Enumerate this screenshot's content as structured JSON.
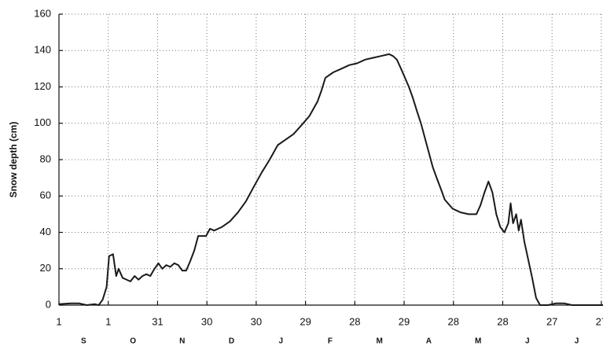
{
  "chart_data": {
    "type": "line",
    "ylabel": "Snow depth (cm)",
    "ylim": [
      0,
      160
    ],
    "yticks": [
      0,
      20,
      40,
      60,
      80,
      100,
      120,
      140,
      160
    ],
    "xlim": [
      0,
      331
    ],
    "xticks": [
      {
        "value": 0,
        "label": "1"
      },
      {
        "value": 30,
        "label": "1"
      },
      {
        "value": 60,
        "label": "31"
      },
      {
        "value": 90,
        "label": "30"
      },
      {
        "value": 120,
        "label": "30"
      },
      {
        "value": 150,
        "label": "29"
      },
      {
        "value": 180,
        "label": "28"
      },
      {
        "value": 210,
        "label": "29"
      },
      {
        "value": 240,
        "label": "28"
      },
      {
        "value": 270,
        "label": "28"
      },
      {
        "value": 300,
        "label": "27"
      },
      {
        "value": 330,
        "label": "27"
      }
    ],
    "month_labels": [
      "S",
      "O",
      "N",
      "D",
      "J",
      "F",
      "M",
      "A",
      "M",
      "J",
      "J"
    ],
    "grid": true,
    "series": [
      {
        "color": "#1a1a1a",
        "x": [
          0,
          7.3,
          12.1,
          16.9,
          21.8,
          24.2,
          26.6,
          29.0,
          30.5,
          32.9,
          34.8,
          36.3,
          38.7,
          41.1,
          43.5,
          46.0,
          48.4,
          50.8,
          53.2,
          55.6,
          58.1,
          60.5,
          62.9,
          65.3,
          67.7,
          70.2,
          72.6,
          75.0,
          77.4,
          79.8,
          82.3,
          84.7,
          87.1,
          89.5,
          91.9,
          94.4,
          96.8,
          99.2,
          104.0,
          108.9,
          113.7,
          118.5,
          123.4,
          128.2,
          133.1,
          137.9,
          142.7,
          147.6,
          152.4,
          157.3,
          159.7,
          162.1,
          166.9,
          171.8,
          176.6,
          181.5,
          186.3,
          191.1,
          196.0,
          200.8,
          203.2,
          205.6,
          208.1,
          210.5,
          212.9,
          215.3,
          217.7,
          220.2,
          222.6,
          225.0,
          227.4,
          229.8,
          232.3,
          234.7,
          239.5,
          242.0,
          244.4,
          249.2,
          254.0,
          256.5,
          258.9,
          261.3,
          263.7,
          266.1,
          268.5,
          271.0,
          273.4,
          274.8,
          276.3,
          278.2,
          279.7,
          281.1,
          283.1,
          285.5,
          287.9,
          290.3,
          292.7,
          297.6,
          302.4,
          307.3,
          312.1,
          331
        ],
        "values": [
          0.5,
          1,
          1,
          0,
          0.5,
          0,
          3,
          10,
          27,
          28,
          16,
          20,
          15,
          14,
          13,
          16,
          14,
          16,
          17,
          16,
          20,
          23,
          20,
          22,
          21,
          23,
          22,
          19,
          19,
          24,
          30,
          38,
          38,
          38,
          42,
          41,
          42,
          43,
          46,
          51,
          57,
          65,
          73,
          80,
          88,
          91,
          94,
          99,
          104,
          112,
          118,
          125,
          128,
          130,
          132,
          133,
          135,
          136,
          137,
          138,
          137,
          135,
          130,
          125,
          120,
          114,
          107,
          100,
          92,
          84,
          76,
          70,
          64,
          58,
          53,
          52,
          51,
          50,
          50,
          55,
          62,
          68,
          62,
          50,
          43,
          40,
          45,
          56,
          45,
          50,
          41,
          47,
          35,
          25,
          15,
          4,
          0,
          0,
          1,
          1,
          0,
          0
        ]
      }
    ]
  }
}
